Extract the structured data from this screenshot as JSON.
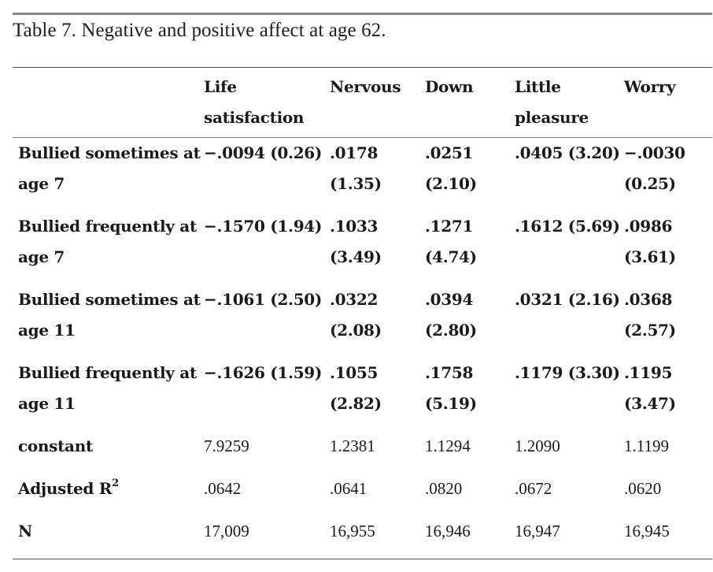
{
  "caption": "Table 7. Negative and positive affect at age 62.",
  "table": {
    "columns": [
      {
        "line1": "",
        "line2": ""
      },
      {
        "line1": "Life",
        "line2": "satisfaction"
      },
      {
        "line1": "Nervous",
        "line2": ""
      },
      {
        "line1": "Down",
        "line2": ""
      },
      {
        "line1": "Little",
        "line2": "pleasure"
      },
      {
        "line1": "Worry",
        "line2": ""
      }
    ],
    "rows": [
      {
        "label_line1": "Bullied sometimes at",
        "label_line2": "age 7",
        "cells": [
          {
            "line1": "−.0094 (0.26)",
            "line2": ""
          },
          {
            "line1": ".0178",
            "line2": "(1.35)"
          },
          {
            "line1": ".0251",
            "line2": "(2.10)"
          },
          {
            "line1": ".0405 (3.20)",
            "line2": ""
          },
          {
            "line1": "−.0030",
            "line2": "(0.25)"
          }
        ]
      },
      {
        "label_line1": "Bullied frequently at",
        "label_line2": "age 7",
        "cells": [
          {
            "line1": "−.1570 (1.94)",
            "line2": ""
          },
          {
            "line1": ".1033",
            "line2": "(3.49)"
          },
          {
            "line1": ".1271",
            "line2": "(4.74)"
          },
          {
            "line1": ".1612 (5.69)",
            "line2": ""
          },
          {
            "line1": ".0986",
            "line2": "(3.61)"
          }
        ]
      },
      {
        "label_line1": "Bullied sometimes at",
        "label_line2": "age 11",
        "cells": [
          {
            "line1": "−.1061 (2.50)",
            "line2": ""
          },
          {
            "line1": ".0322",
            "line2": "(2.08)"
          },
          {
            "line1": ".0394",
            "line2": "(2.80)"
          },
          {
            "line1": ".0321 (2.16)",
            "line2": ""
          },
          {
            "line1": ".0368",
            "line2": "(2.57)"
          }
        ]
      },
      {
        "label_line1": "Bullied frequently at",
        "label_line2": "age 11",
        "cells": [
          {
            "line1": "−.1626 (1.59)",
            "line2": ""
          },
          {
            "line1": ".1055",
            "line2": "(2.82)"
          },
          {
            "line1": ".1758",
            "line2": "(5.19)"
          },
          {
            "line1": ".1179 (3.30)",
            "line2": ""
          },
          {
            "line1": ".1195",
            "line2": "(3.47)"
          }
        ]
      }
    ],
    "stats": [
      {
        "label": "constant",
        "sup": "",
        "values": [
          "7.9259",
          "1.2381",
          "1.1294",
          "1.2090",
          "1.1199"
        ]
      },
      {
        "label": "Adjusted R",
        "sup": "2",
        "values": [
          ".0642",
          ".0641",
          ".0820",
          ".0672",
          ".0620"
        ]
      },
      {
        "label": "N",
        "sup": "",
        "values": [
          "17,009",
          "16,955",
          "16,946",
          "16,947",
          "16,945"
        ]
      }
    ]
  },
  "colors": {
    "text": "#1a1a1a",
    "rule": "#8a8a8a"
  }
}
